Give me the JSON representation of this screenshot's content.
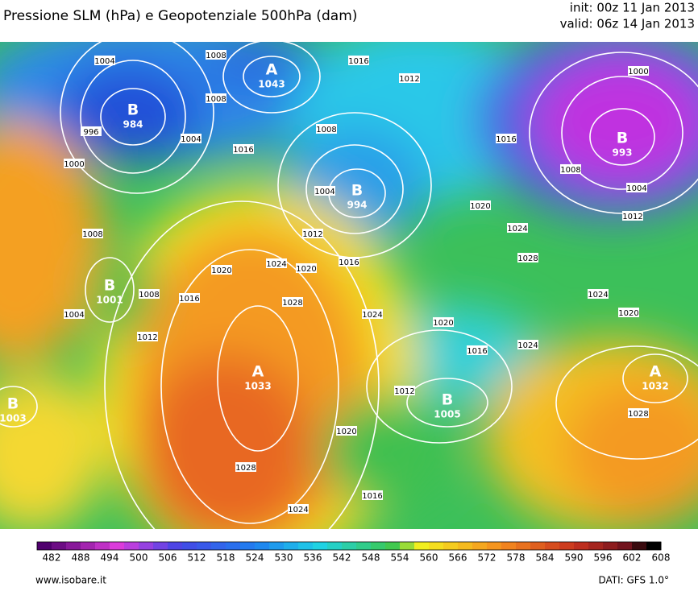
{
  "header": {
    "title": "Pressione SLM (hPa) e Geopotenziale 500hPa (dam)",
    "init": "init: 00z 11 Jan 2013",
    "valid": "valid: 06z 14 Jan 2013"
  },
  "centers": [
    {
      "letter": "B",
      "value": 984
    },
    {
      "letter": "A",
      "value": 1043
    },
    {
      "letter": "B",
      "value": 994
    },
    {
      "letter": "B",
      "value": 993
    },
    {
      "letter": "B",
      "value": 1001
    },
    {
      "letter": "A",
      "value": 1033
    },
    {
      "letter": "B",
      "value": 1005
    },
    {
      "letter": "A",
      "value": 1032
    },
    {
      "letter": "B",
      "value": 1003
    }
  ],
  "isobar_labels": [
    1004,
    1008,
    1016,
    1012,
    1008,
    996,
    1004,
    1016,
    1008,
    1000,
    1004,
    1012,
    1008,
    1020,
    1024,
    1016,
    1008,
    1004,
    1012,
    1000,
    1020,
    1024,
    1016,
    1020,
    1028,
    1016,
    1008,
    1004,
    1012,
    1028,
    1024,
    1024,
    1020,
    1020,
    1016,
    1024,
    1012,
    1028,
    1020,
    1028,
    1024,
    1016
  ],
  "colorbar": {
    "labels": [
      482,
      488,
      494,
      500,
      506,
      512,
      518,
      524,
      530,
      536,
      542,
      548,
      554,
      560,
      566,
      572,
      578,
      584,
      590,
      596,
      602,
      608
    ]
  },
  "footer": {
    "site": "www.isobare.it",
    "source": "DATI: GFS 1.0°"
  }
}
